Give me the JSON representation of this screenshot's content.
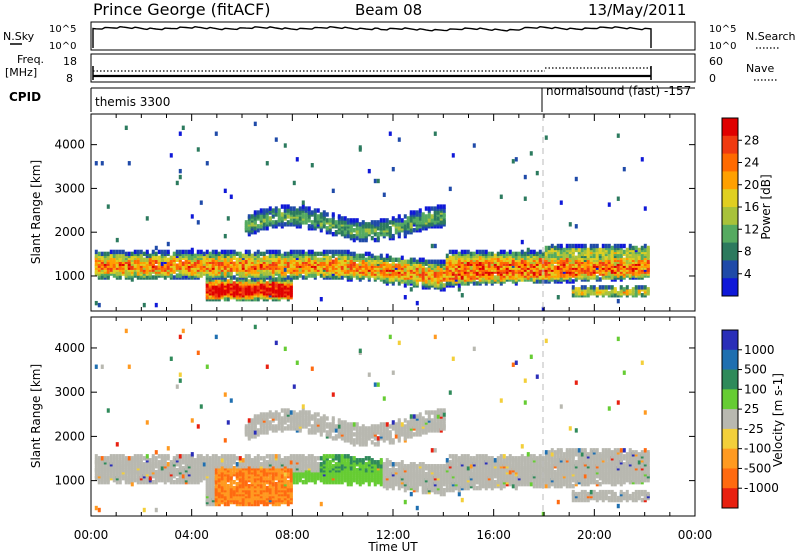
{
  "header": {
    "station": "Prince George (fitACF)",
    "beam": "Beam 08",
    "date": "13/May/2011"
  },
  "noise_panel": {
    "left_label": "N.Sky",
    "right_label": "N.Search",
    "left_ticks": [
      "10^5",
      "10^0"
    ],
    "right_ticks": [
      "10^5",
      "10^0"
    ]
  },
  "freq_panel": {
    "left_label": "Freq.",
    "left_unit": "[MHz]",
    "right_label": "Nave",
    "left_ticks": [
      "18",
      "8"
    ],
    "right_ticks": [
      "60",
      "0"
    ]
  },
  "cpid_panel": {
    "label": "CPID",
    "segments": [
      {
        "name": "themis 3300",
        "start": "00:00"
      },
      {
        "name": "normalsound (fast) -157",
        "start": "18:00"
      }
    ]
  },
  "chart_data": [
    {
      "type": "heatmap",
      "name": "power",
      "ylabel": "Slant Range [km]",
      "y_ticks": [
        "1000",
        "2000",
        "3000",
        "4000"
      ],
      "ylim": [
        200,
        4700
      ],
      "xlim": [
        "00:00",
        "24:00"
      ],
      "data_end": "22:10",
      "colorbar": {
        "label": "Power [dB]",
        "ticks": [
          "4",
          "8",
          "12",
          "16",
          "20",
          "24",
          "28"
        ],
        "range": [
          0,
          32
        ],
        "colors": [
          "#0f18d8",
          "#1f4aa8",
          "#2c7a5e",
          "#55aa60",
          "#a8c23a",
          "#e0cf20",
          "#ffa000",
          "#ff6a00",
          "#f03a10",
          "#e00000"
        ]
      }
    },
    {
      "type": "heatmap",
      "name": "velocity",
      "xlabel": "Time UT",
      "ylabel": "Slant Range [km]",
      "x_ticks": [
        "00:00",
        "04:00",
        "08:00",
        "12:00",
        "16:00",
        "20:00",
        "00:00"
      ],
      "y_ticks": [
        "1000",
        "2000",
        "3000",
        "4000"
      ],
      "ylim": [
        200,
        4700
      ],
      "colorbar": {
        "label": "Velocity [m s-1]",
        "ticks": [
          "1000",
          "500",
          "100",
          "25",
          "-25",
          "-100",
          "-500",
          "-1000"
        ],
        "colors": [
          "#2a2eb8",
          "#1f6fb0",
          "#2f8a5a",
          "#66cc33",
          "#b8b8b0",
          "#f3cf3a",
          "#ff9a20",
          "#ff6a10",
          "#e82010"
        ]
      }
    }
  ]
}
